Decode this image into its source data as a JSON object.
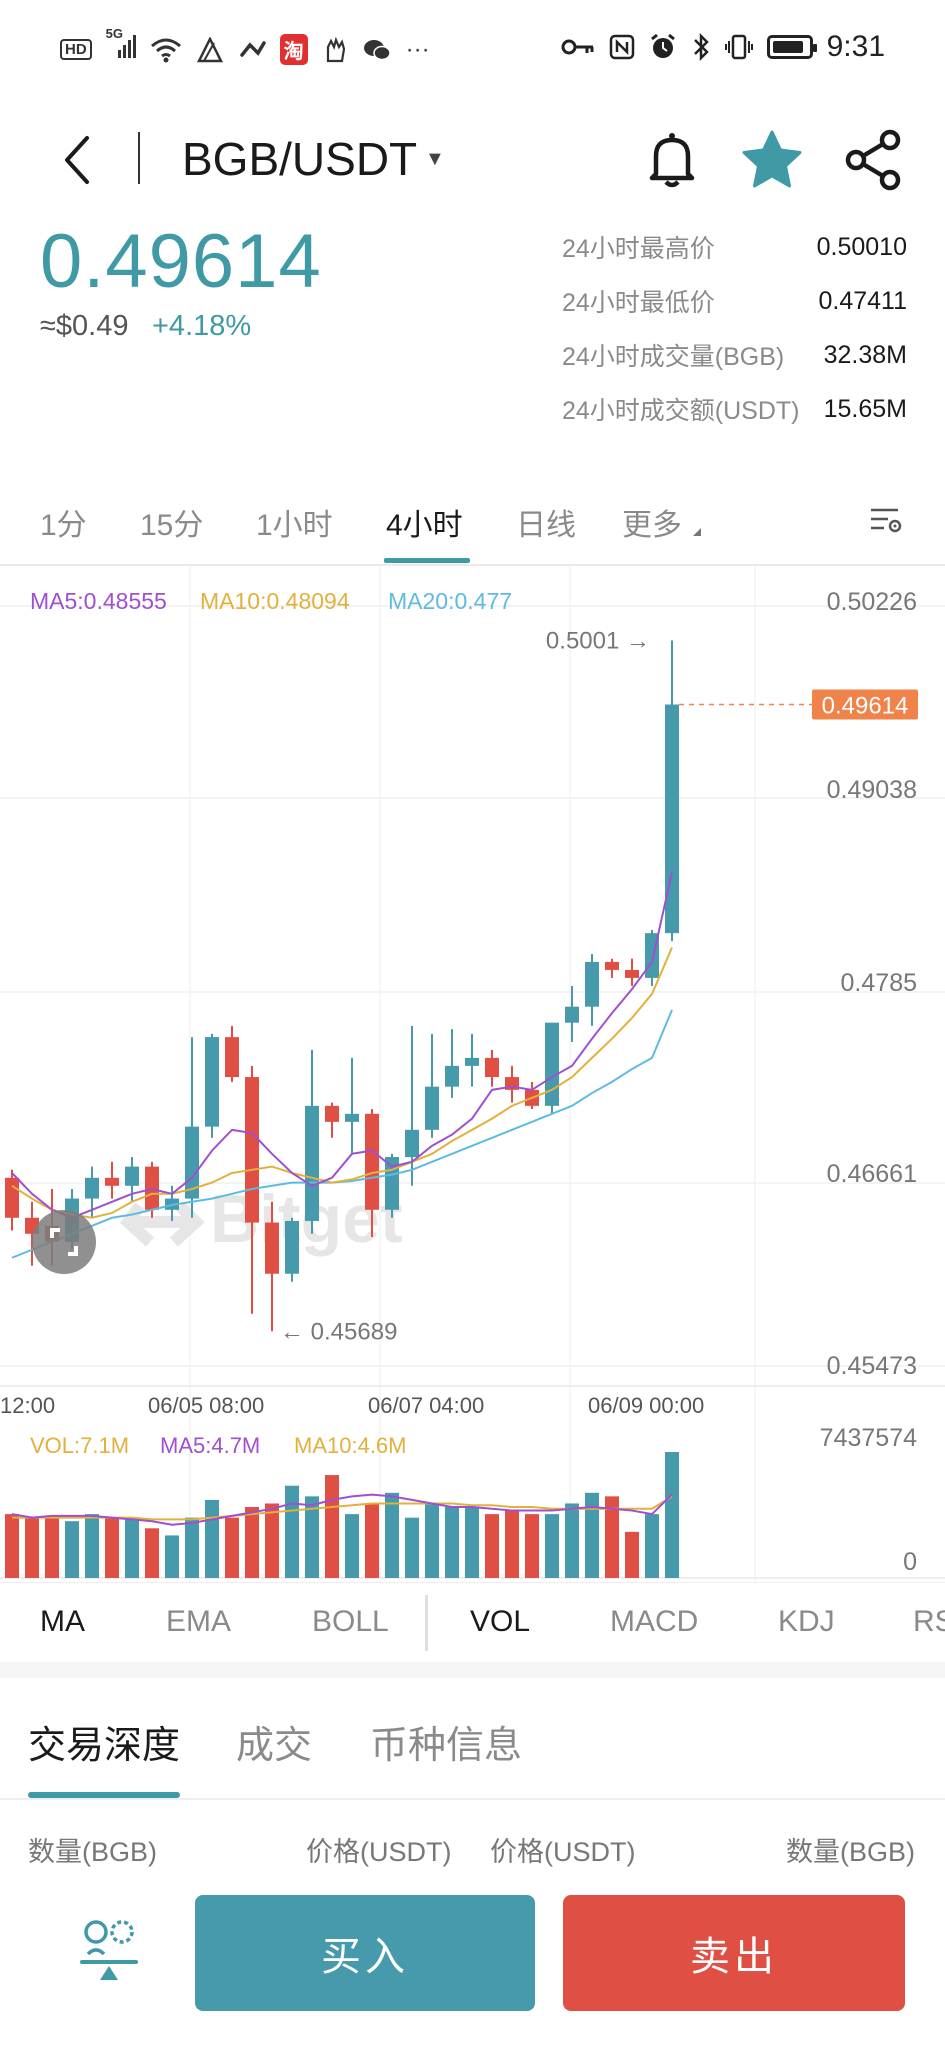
{
  "status_bar": {
    "left_badges": [
      "HD",
      "5G"
    ],
    "taobao_badge": "淘",
    "more": "···",
    "time": "9:31",
    "icons": [
      "signal-icon",
      "wifi-icon",
      "sim-icon",
      "link-icon",
      "taobao-icon",
      "glove-icon",
      "wechat-icon",
      "key-icon",
      "nfc-icon",
      "alarm-icon",
      "bluetooth-icon",
      "vibrate-icon",
      "battery-icon"
    ]
  },
  "header": {
    "pair": "BGB/USDT",
    "icons": [
      "back-icon",
      "bell-icon",
      "star-icon",
      "share-icon"
    ],
    "accent": "#3f9aa6"
  },
  "price": {
    "last": "0.49614",
    "usd": "≈$0.49",
    "change": "+4.18%"
  },
  "stats": [
    {
      "label": "24小时最高价",
      "value": "0.50010"
    },
    {
      "label": "24小时最低价",
      "value": "0.47411"
    },
    {
      "label": "24小时成交量(BGB)",
      "value": "32.38M"
    },
    {
      "label": "24小时成交额(USDT)",
      "value": "15.65M"
    }
  ],
  "tabs": [
    "1分",
    "15分",
    "1小时",
    "4小时",
    "日线",
    "更多"
  ],
  "active_tab": "4小时",
  "chart": {
    "ma_legend": [
      {
        "text": "MA5:0.48555",
        "color": "#a14fd1"
      },
      {
        "text": "MA10:0.48094",
        "color": "#e2b13c"
      },
      {
        "text": "MA20:0.477",
        "color": "#5ebbe0"
      }
    ],
    "price_axis": [
      "0.50226",
      "0.49038",
      "0.4785",
      "0.46661",
      "0.45473"
    ],
    "current_price_tag": "0.49614",
    "high_label": "0.5001",
    "low_label": "0.45689",
    "watermark": "Bitget",
    "time_axis": [
      "12:00",
      "06/05 08:00",
      "06/07 04:00",
      "06/09 00:00"
    ],
    "vol_legend": [
      {
        "text": "VOL:7.1M",
        "color": "#e2b13c"
      },
      {
        "text": "MA5:4.7M",
        "color": "#a14fd1"
      },
      {
        "text": "MA10:4.6M",
        "color": "#e2b13c"
      }
    ],
    "vol_axis": [
      "7437574",
      "0"
    ],
    "colors": {
      "up": "#479aac",
      "down": "#e04f43",
      "tag": "#f0834a"
    }
  },
  "chart_data": {
    "type": "candlestick",
    "candles": [
      {
        "o": 0.4665,
        "h": 0.467,
        "l": 0.4632,
        "c": 0.464
      },
      {
        "o": 0.464,
        "h": 0.465,
        "l": 0.461,
        "c": 0.463
      },
      {
        "o": 0.4635,
        "h": 0.4658,
        "l": 0.461,
        "c": 0.4625
      },
      {
        "o": 0.4625,
        "h": 0.4658,
        "l": 0.462,
        "c": 0.4652
      },
      {
        "o": 0.4652,
        "h": 0.4672,
        "l": 0.464,
        "c": 0.4665
      },
      {
        "o": 0.4665,
        "h": 0.4675,
        "l": 0.4652,
        "c": 0.466
      },
      {
        "o": 0.466,
        "h": 0.4678,
        "l": 0.465,
        "c": 0.4672
      },
      {
        "o": 0.4672,
        "h": 0.4675,
        "l": 0.464,
        "c": 0.4645
      },
      {
        "o": 0.4645,
        "h": 0.466,
        "l": 0.4638,
        "c": 0.4652
      },
      {
        "o": 0.4652,
        "h": 0.4753,
        "l": 0.464,
        "c": 0.4697
      },
      {
        "o": 0.4697,
        "h": 0.4755,
        "l": 0.469,
        "c": 0.4753
      },
      {
        "o": 0.4753,
        "h": 0.476,
        "l": 0.4725,
        "c": 0.4728
      },
      {
        "o": 0.4728,
        "h": 0.4735,
        "l": 0.458,
        "c": 0.4637
      },
      {
        "o": 0.4637,
        "h": 0.465,
        "l": 0.4569,
        "c": 0.4605
      },
      {
        "o": 0.4605,
        "h": 0.464,
        "l": 0.46,
        "c": 0.4638
      },
      {
        "o": 0.4638,
        "h": 0.4745,
        "l": 0.463,
        "c": 0.471
      },
      {
        "o": 0.471,
        "h": 0.4712,
        "l": 0.469,
        "c": 0.47
      },
      {
        "o": 0.47,
        "h": 0.474,
        "l": 0.468,
        "c": 0.4705
      },
      {
        "o": 0.4705,
        "h": 0.4708,
        "l": 0.4628,
        "c": 0.4645
      },
      {
        "o": 0.4645,
        "h": 0.468,
        "l": 0.464,
        "c": 0.4678
      },
      {
        "o": 0.4678,
        "h": 0.476,
        "l": 0.466,
        "c": 0.4695
      },
      {
        "o": 0.4695,
        "h": 0.4755,
        "l": 0.469,
        "c": 0.4722
      },
      {
        "o": 0.4722,
        "h": 0.4758,
        "l": 0.4715,
        "c": 0.4735
      },
      {
        "o": 0.4735,
        "h": 0.4755,
        "l": 0.4722,
        "c": 0.474
      },
      {
        "o": 0.474,
        "h": 0.4745,
        "l": 0.4722,
        "c": 0.4728
      },
      {
        "o": 0.4728,
        "h": 0.4735,
        "l": 0.4712,
        "c": 0.472
      },
      {
        "o": 0.472,
        "h": 0.4725,
        "l": 0.4708,
        "c": 0.471
      },
      {
        "o": 0.471,
        "h": 0.4762,
        "l": 0.4705,
        "c": 0.4762
      },
      {
        "o": 0.4762,
        "h": 0.4785,
        "l": 0.475,
        "c": 0.4772
      },
      {
        "o": 0.4772,
        "h": 0.4805,
        "l": 0.476,
        "c": 0.48
      },
      {
        "o": 0.48,
        "h": 0.4802,
        "l": 0.479,
        "c": 0.4795
      },
      {
        "o": 0.4795,
        "h": 0.4802,
        "l": 0.4785,
        "c": 0.479
      },
      {
        "o": 0.479,
        "h": 0.482,
        "l": 0.4785,
        "c": 0.4818
      },
      {
        "o": 0.4818,
        "h": 0.5001,
        "l": 0.4813,
        "c": 0.4961
      }
    ],
    "ma5": [
      0.4668,
      0.4655,
      0.4645,
      0.464,
      0.4645,
      0.465,
      0.4655,
      0.4658,
      0.4655,
      0.4665,
      0.4682,
      0.4695,
      0.4693,
      0.468,
      0.4668,
      0.466,
      0.4665,
      0.468,
      0.4682,
      0.4672,
      0.4675,
      0.4685,
      0.4692,
      0.4702,
      0.472,
      0.4722,
      0.472,
      0.4728,
      0.4735,
      0.4752,
      0.4768,
      0.4783,
      0.48,
      0.4856
    ],
    "ma10": [
      0.466,
      0.4652,
      0.4645,
      0.4642,
      0.464,
      0.4643,
      0.465,
      0.4655,
      0.4655,
      0.4658,
      0.4662,
      0.4668,
      0.467,
      0.4672,
      0.4668,
      0.4665,
      0.4662,
      0.4664,
      0.4668,
      0.467,
      0.4675,
      0.468,
      0.4688,
      0.4695,
      0.4702,
      0.471,
      0.4715,
      0.472,
      0.4728,
      0.474,
      0.4752,
      0.4765,
      0.478,
      0.4809
    ],
    "ma20": [
      0.4615,
      0.462,
      0.4625,
      0.463,
      0.4635,
      0.464,
      0.4642,
      0.4645,
      0.4648,
      0.465,
      0.4652,
      0.4655,
      0.4658,
      0.466,
      0.4662,
      0.4662,
      0.4662,
      0.4663,
      0.4665,
      0.4667,
      0.467,
      0.4675,
      0.468,
      0.4685,
      0.469,
      0.4695,
      0.47,
      0.4705,
      0.471,
      0.4718,
      0.4725,
      0.4733,
      0.474,
      0.477
    ],
    "volume": [
      3.6,
      3.4,
      3.4,
      3.2,
      3.6,
      3.4,
      3.4,
      2.8,
      2.4,
      3.4,
      4.4,
      3.4,
      4.0,
      4.2,
      5.2,
      4.6,
      5.8,
      3.6,
      4.2,
      4.8,
      3.4,
      4.2,
      4.0,
      4.0,
      3.6,
      3.8,
      3.6,
      3.6,
      4.2,
      4.8,
      4.6,
      2.6,
      3.6,
      7.1
    ],
    "vol_ma5": [
      3.6,
      3.4,
      3.5,
      3.5,
      3.5,
      3.4,
      3.3,
      3.2,
      3.0,
      3.1,
      3.3,
      3.5,
      3.7,
      3.9,
      4.2,
      4.1,
      4.4,
      4.6,
      4.7,
      4.6,
      4.4,
      4.2,
      4.0,
      4.0,
      3.9,
      3.8,
      3.8,
      3.8,
      3.9,
      4.0,
      3.9,
      3.8,
      3.6,
      4.7
    ],
    "vol_ma10": [
      3.4,
      3.4,
      3.4,
      3.4,
      3.4,
      3.4,
      3.4,
      3.3,
      3.3,
      3.3,
      3.4,
      3.5,
      3.6,
      3.7,
      3.8,
      3.9,
      4.0,
      4.1,
      4.2,
      4.2,
      4.2,
      4.2,
      4.2,
      4.1,
      4.1,
      4.0,
      4.0,
      3.9,
      3.9,
      3.9,
      3.9,
      3.9,
      3.9,
      4.6
    ],
    "ylim": [
      0.45473,
      0.50226
    ],
    "vol_ylim": [
      0,
      7.437574
    ]
  },
  "indicators": [
    "MA",
    "EMA",
    "BOLL",
    "VOL",
    "MACD",
    "KDJ",
    "RS"
  ],
  "depth_tabs": [
    "交易深度",
    "成交",
    "币种信息"
  ],
  "depth_columns": [
    "数量(BGB)",
    "价格(USDT)",
    "价格(USDT)",
    "数量(BGB)"
  ],
  "actions": {
    "buy": "买入",
    "sell": "卖出",
    "buy_color": "#479aac",
    "sell_color": "#e04f43"
  }
}
